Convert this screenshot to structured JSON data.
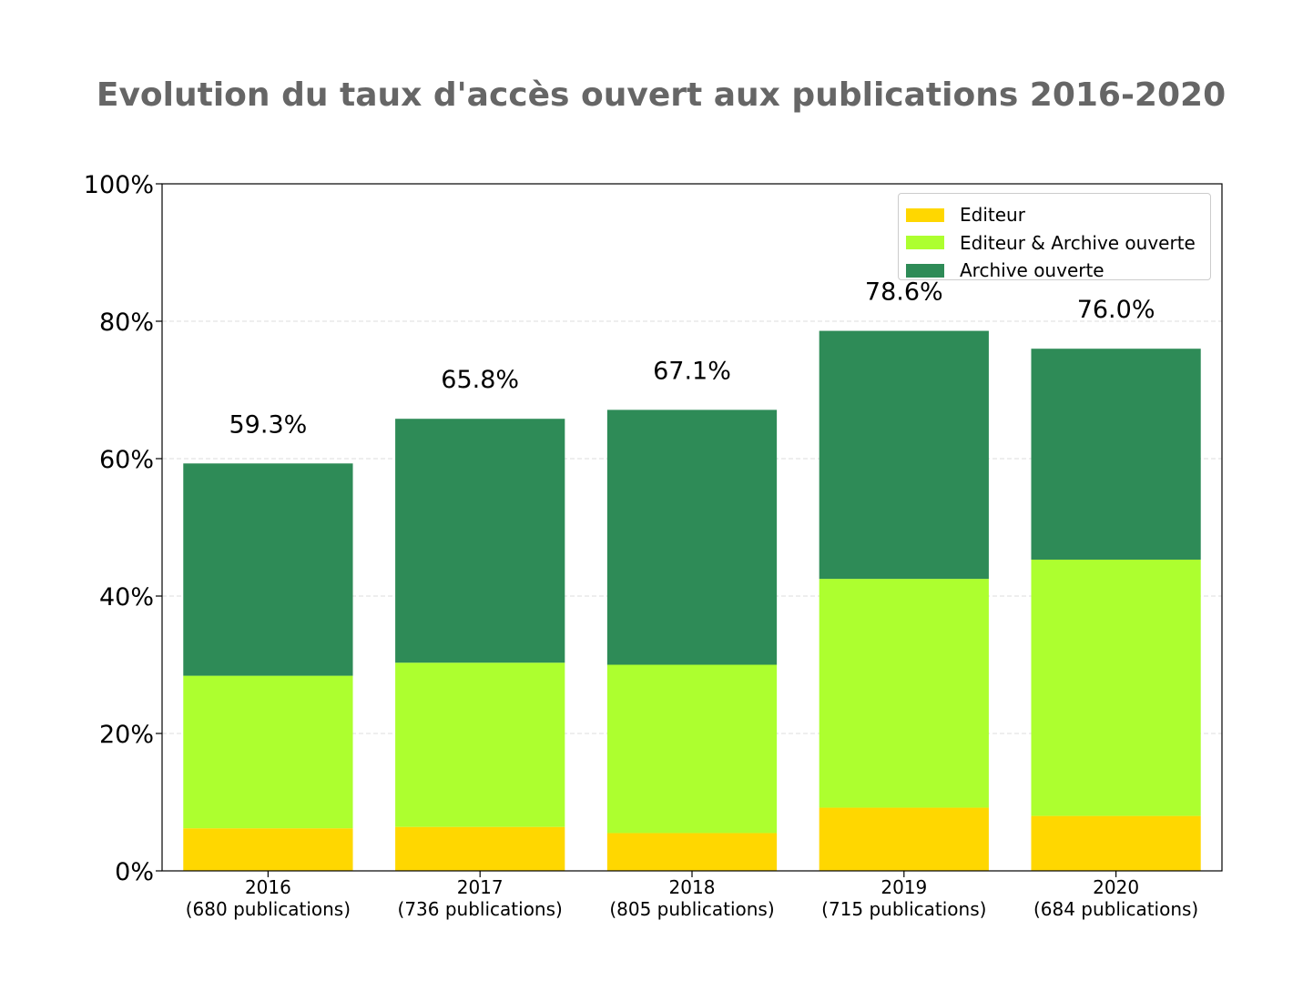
{
  "title": "Evolution du taux d'accès ouvert aux publications 2016-2020",
  "chart_data": {
    "type": "bar",
    "stacked": true,
    "title": "Evolution du taux d'accès ouvert aux publications 2016-2020",
    "categories": [
      [
        "2016",
        "(680 publications)"
      ],
      [
        "2017",
        "(736 publications)"
      ],
      [
        "2018",
        "(805 publications)"
      ],
      [
        "2019",
        "(715 publications)"
      ],
      [
        "2020",
        "(684 publications)"
      ]
    ],
    "series": [
      {
        "name": "Editeur",
        "color": "#ffd700",
        "values": [
          6.2,
          6.4,
          5.5,
          9.2,
          8.0
        ]
      },
      {
        "name": "Editeur & Archive ouverte",
        "color": "#adff2f",
        "values": [
          22.2,
          23.9,
          24.5,
          33.3,
          37.3
        ]
      },
      {
        "name": "Archive ouverte",
        "color": "#2e8b57",
        "values": [
          30.9,
          35.5,
          37.1,
          36.1,
          30.7
        ]
      }
    ],
    "totals": [
      "59.3%",
      "65.8%",
      "67.1%",
      "78.6%",
      "76.0%"
    ],
    "total_values": [
      59.3,
      65.8,
      67.1,
      78.6,
      76.0
    ],
    "ylim": [
      0,
      100
    ],
    "yticks": [
      "0%",
      "20%",
      "40%",
      "60%",
      "80%",
      "100%"
    ],
    "ytick_values": [
      0,
      20,
      40,
      60,
      80,
      100
    ],
    "grid": true,
    "legend_position": "top-right"
  }
}
